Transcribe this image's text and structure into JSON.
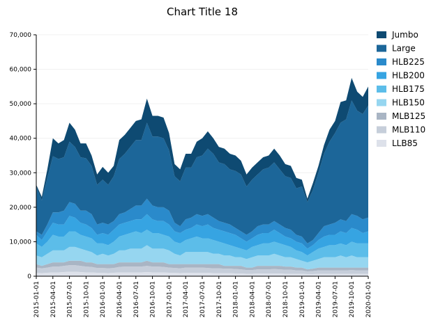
{
  "chart_data": {
    "type": "area",
    "stacked": true,
    "title": "Chart Title 18",
    "xlabel": "",
    "ylabel": "",
    "ylim": [
      0,
      70000
    ],
    "yticks": [
      0,
      10000,
      20000,
      30000,
      40000,
      50000,
      60000,
      70000
    ],
    "ytick_labels": [
      "0",
      "10,000",
      "20,000",
      "30,000",
      "40,000",
      "50,000",
      "60,000",
      "70,000"
    ],
    "xtick_labels": [
      "2015-01-01",
      "2015-04-01",
      "2015-07-01",
      "2015-10-01",
      "2016-01-01",
      "2016-04-01",
      "2016-07-01",
      "2016-10-01",
      "2017-01-01",
      "2017-04-01",
      "2017-07-01",
      "2017-10-01",
      "2018-01-01",
      "2018-04-01",
      "2018-07-01",
      "2018-10-01",
      "2019-01-01",
      "2019-04-01",
      "2019-07-01",
      "2019-10-01",
      "2020-01-01"
    ],
    "legend_position": "right",
    "grid": false,
    "series_order_bottom_to_top": [
      "LLB85",
      "MLB110",
      "MLB125",
      "HLB150",
      "HLB175",
      "HLB200",
      "HLB225",
      "Large",
      "Jumbo"
    ],
    "colors": {
      "Jumbo": "#0e4a72",
      "Large": "#1c6699",
      "HLB225": "#2a8acb",
      "HLB200": "#36a4e2",
      "HLB175": "#5cbde9",
      "HLB150": "#96d6f0",
      "MLB125": "#a9b5c4",
      "MLB110": "#c6ceda",
      "LLB85": "#dde1ea"
    },
    "x": [
      "2015-01",
      "2015-02",
      "2015-03",
      "2015-04",
      "2015-05",
      "2015-06",
      "2015-07",
      "2015-08",
      "2015-09",
      "2015-10",
      "2015-11",
      "2015-12",
      "2016-01",
      "2016-02",
      "2016-03",
      "2016-04",
      "2016-05",
      "2016-06",
      "2016-07",
      "2016-08",
      "2016-09",
      "2016-10",
      "2016-11",
      "2016-12",
      "2017-01",
      "2017-02",
      "2017-03",
      "2017-04",
      "2017-05",
      "2017-06",
      "2017-07",
      "2017-08",
      "2017-09",
      "2017-10",
      "2017-11",
      "2017-12",
      "2018-01",
      "2018-02",
      "2018-03",
      "2018-04",
      "2018-05",
      "2018-06",
      "2018-07",
      "2018-08",
      "2018-09",
      "2018-10",
      "2018-11",
      "2018-12",
      "2019-01",
      "2019-02",
      "2019-03",
      "2019-04",
      "2019-05",
      "2019-06",
      "2019-07",
      "2019-08",
      "2019-09",
      "2019-10",
      "2019-11",
      "2019-12",
      "2020-01"
    ],
    "totals": [
      26500,
      23000,
      31000,
      40000,
      38500,
      39500,
      44500,
      42500,
      38500,
      38500,
      35000,
      29500,
      31700,
      30000,
      32000,
      39500,
      41000,
      43000,
      45000,
      45500,
      51500,
      46500,
      46500,
      46000,
      41500,
      32500,
      31000,
      35500,
      35500,
      39000,
      40000,
      42000,
      40000,
      37500,
      37000,
      35500,
      35000,
      33500,
      29500,
      31500,
      33000,
      34500,
      35000,
      37000,
      35000,
      32500,
      32000,
      28500,
      28000,
      22500,
      27000,
      32000,
      38000,
      42500,
      45000,
      50500,
      51000,
      57500,
      53500,
      52000,
      55000
    ],
    "top_of_large": [
      26000,
      22000,
      28500,
      34800,
      34000,
      34500,
      39000,
      37500,
      34500,
      34200,
      32000,
      26500,
      28000,
      26500,
      29000,
      34000,
      35500,
      37500,
      39500,
      39500,
      44500,
      40500,
      40500,
      40000,
      36500,
      29000,
      27500,
      31500,
      31500,
      34500,
      35000,
      37000,
      35500,
      33000,
      32500,
      31000,
      30500,
      29500,
      26000,
      28000,
      29500,
      31000,
      31500,
      33000,
      31000,
      29000,
      28500,
      25500,
      26000,
      21500,
      25000,
      30000,
      35500,
      39000,
      41500,
      44500,
      45500,
      51000,
      48000,
      47000,
      49500
    ],
    "top_of_hlb225": [
      13000,
      12000,
      15000,
      18500,
      18500,
      19000,
      21500,
      21000,
      19000,
      19000,
      18000,
      15000,
      15500,
      15000,
      16000,
      18000,
      18500,
      19500,
      20500,
      20500,
      22500,
      20500,
      20000,
      20000,
      19000,
      15500,
      14500,
      16500,
      17000,
      18000,
      17500,
      18000,
      17000,
      16000,
      15500,
      15000,
      14000,
      13000,
      12000,
      13000,
      14500,
      15000,
      15000,
      16000,
      15000,
      14000,
      13500,
      12000,
      11500,
      9500,
      10500,
      12500,
      14500,
      15000,
      15500,
      16500,
      16000,
      18000,
      17500,
      16500,
      17000
    ],
    "top_of_hlb200": [
      12000,
      10500,
      13000,
      15500,
      15000,
      15000,
      17500,
      17000,
      15500,
      15000,
      14000,
      12000,
      12500,
      12000,
      13500,
      15000,
      15500,
      16000,
      16500,
      16500,
      18000,
      16500,
      16000,
      16000,
      15000,
      13000,
      12500,
      13500,
      14000,
      15000,
      14500,
      15000,
      14000,
      13500,
      13000,
      12500,
      12000,
      11000,
      10000,
      11000,
      12000,
      12500,
      12500,
      13500,
      12500,
      11500,
      11000,
      10000,
      9500,
      8000,
      9000,
      10500,
      11500,
      12000,
      12000,
      13000,
      12500,
      14000,
      13500,
      12500,
      13000
    ],
    "top_of_hlb175": [
      9500,
      8500,
      10000,
      12000,
      11500,
      11500,
      13000,
      13000,
      12000,
      11500,
      11000,
      9500,
      9500,
      9000,
      10000,
      11500,
      12000,
      12500,
      13000,
      12500,
      13500,
      12500,
      12500,
      12000,
      11500,
      10000,
      9500,
      10500,
      11000,
      11500,
      11000,
      11000,
      10500,
      10000,
      9500,
      9000,
      8500,
      8000,
      7500,
      8500,
      9000,
      9500,
      9500,
      10000,
      9500,
      9000,
      8500,
      7500,
      7000,
      6000,
      7000,
      8000,
      8500,
      9000,
      9000,
      9500,
      9000,
      10000,
      9500,
      9500,
      9500
    ],
    "top_of_hlb150": [
      6000,
      5500,
      6500,
      7500,
      7500,
      7500,
      8500,
      8500,
      8000,
      7500,
      7000,
      6000,
      6500,
      6000,
      6500,
      7500,
      7500,
      8000,
      8000,
      8000,
      9000,
      8000,
      8000,
      8000,
      7500,
      6500,
      6000,
      7000,
      7000,
      7000,
      7000,
      7000,
      6500,
      6500,
      6000,
      6000,
      5500,
      5500,
      5000,
      5500,
      6000,
      6000,
      6000,
      6500,
      6000,
      5500,
      5500,
      5000,
      4500,
      4000,
      4500,
      5000,
      5500,
      5500,
      5500,
      6000,
      5500,
      6000,
      5500,
      5500,
      5500
    ],
    "top_of_mlb125": [
      3500,
      3000,
      3500,
      4000,
      4000,
      4000,
      4500,
      4500,
      4500,
      4000,
      4000,
      3500,
      3500,
      3500,
      3500,
      4000,
      4000,
      4000,
      4000,
      4000,
      4500,
      4000,
      4000,
      4000,
      3500,
      3500,
      3500,
      3500,
      3500,
      3500,
      3500,
      3500,
      3500,
      3500,
      3000,
      3000,
      3000,
      3000,
      2500,
      2500,
      3000,
      3000,
      3000,
      3000,
      3000,
      2800,
      2800,
      2500,
      2500,
      2000,
      2200,
      2500,
      2500,
      2500,
      2500,
      2500,
      2500,
      2500,
      2500,
      2500,
      2500
    ],
    "top_of_mlb110": [
      2500,
      2300,
      2500,
      2800,
      2800,
      3000,
      3200,
      3200,
      3000,
      2800,
      2700,
      2400,
      2400,
      2300,
      2400,
      2700,
      2800,
      2800,
      2800,
      2800,
      3000,
      2800,
      2800,
      2700,
      2500,
      2400,
      2300,
      2500,
      2500,
      2500,
      2500,
      2400,
      2300,
      2300,
      2200,
      2200,
      2100,
      2000,
      1800,
      1800,
      2000,
      2000,
      2000,
      2100,
      2000,
      1900,
      1900,
      1700,
      1700,
      1400,
      1500,
      1700,
      1700,
      1700,
      1700,
      1700,
      1700,
      1800,
      1700,
      1700,
      1700
    ],
    "top_of_llb85": [
      1000,
      900,
      1000,
      1100,
      1100,
      1200,
      1300,
      1300,
      1200,
      1100,
      1100,
      1000,
      1000,
      900,
      1000,
      1100,
      1100,
      1100,
      1100,
      1100,
      1200,
      1100,
      1100,
      1100,
      1000,
      1000,
      900,
      1000,
      1000,
      1000,
      1000,
      1000,
      900,
      900,
      900,
      900,
      800,
      800,
      700,
      700,
      800,
      800,
      800,
      800,
      800,
      700,
      700,
      700,
      700,
      600,
      600,
      700,
      700,
      700,
      700,
      700,
      700,
      700,
      700,
      700,
      700
    ]
  }
}
